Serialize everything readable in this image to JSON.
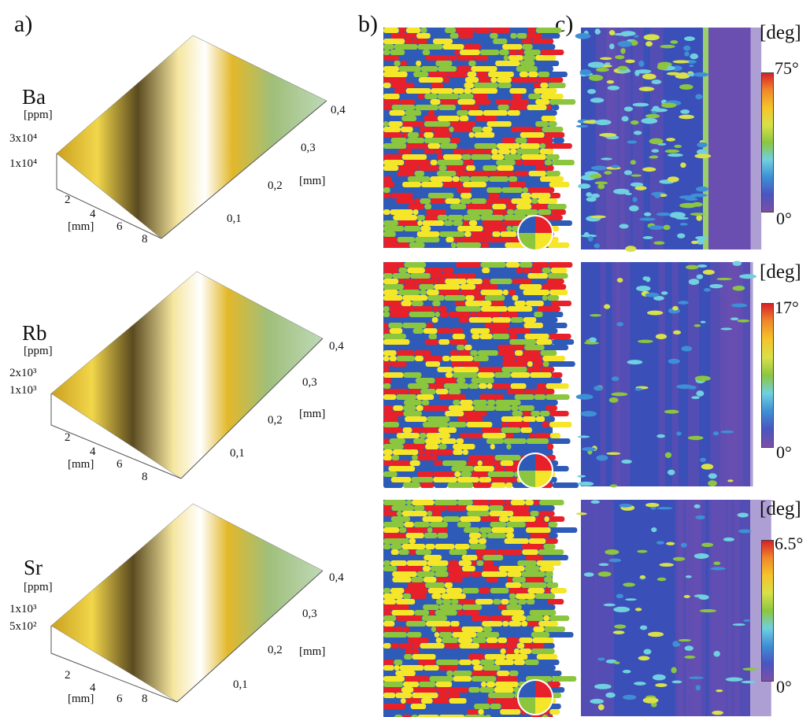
{
  "panel_labels": {
    "a": "a)",
    "b": "b)",
    "c": "c)"
  },
  "rows": [
    {
      "element": "Ba",
      "unit": "[ppm]",
      "z_ticks": [
        "3x10⁴",
        "1x10⁴"
      ],
      "x_ticks": [
        "2",
        "4",
        "6",
        "8"
      ],
      "x_unit": "[mm]",
      "y_ticks": [
        "0,1",
        "0,2",
        "0,3",
        "0,4"
      ],
      "y_unit": "[mm]",
      "deg_label": "[deg]",
      "scale_max": "75°",
      "scale_min": "0°"
    },
    {
      "element": "Rb",
      "unit": "[ppm]",
      "z_ticks": [
        "2x10³",
        "1x10³"
      ],
      "x_ticks": [
        "2",
        "4",
        "6",
        "8"
      ],
      "x_unit": "[mm]",
      "y_ticks": [
        "0,1",
        "0,2",
        "0,3",
        "0,4"
      ],
      "y_unit": "[mm]",
      "deg_label": "[deg]",
      "scale_max": "17°",
      "scale_min": "0°"
    },
    {
      "element": "Sr",
      "unit": "[ppm]",
      "z_ticks": [
        "1x10³",
        "5x10²"
      ],
      "x_ticks": [
        "2",
        "4",
        "6",
        "8"
      ],
      "x_unit": "[mm]",
      "y_ticks": [
        "0,1",
        "0,2",
        "0,3",
        "0,4"
      ],
      "y_unit": "[mm]",
      "deg_label": "[deg]",
      "scale_max": "6.5°",
      "scale_min": "0°"
    }
  ],
  "colors": {
    "map_quadrants": [
      "#e8202a",
      "#2e5bb8",
      "#f5e62a",
      "#8cc63f"
    ],
    "colorbar_75": [
      "#7b4fa8",
      "#4a55c0",
      "#3e8fd6",
      "#6fd0e0",
      "#8cc63f",
      "#d8e04a",
      "#f5c42a",
      "#f08a2a",
      "#d82028"
    ],
    "colorbar_17": [
      "#7b4fa8",
      "#4a55c0",
      "#3e8fd6",
      "#6fd0e0",
      "#8cc63f",
      "#d8e04a",
      "#f5c42a",
      "#f08a2a",
      "#d82028"
    ],
    "colorbar_6_5": [
      "#7b4fa8",
      "#4a55c0",
      "#3e8fd6",
      "#6fd0e0",
      "#8cc63f",
      "#d8e04a",
      "#f5c42a",
      "#f08a2a",
      "#d82028"
    ],
    "c_background": "#6a4fb0",
    "c_field": "#3a4fb8"
  }
}
